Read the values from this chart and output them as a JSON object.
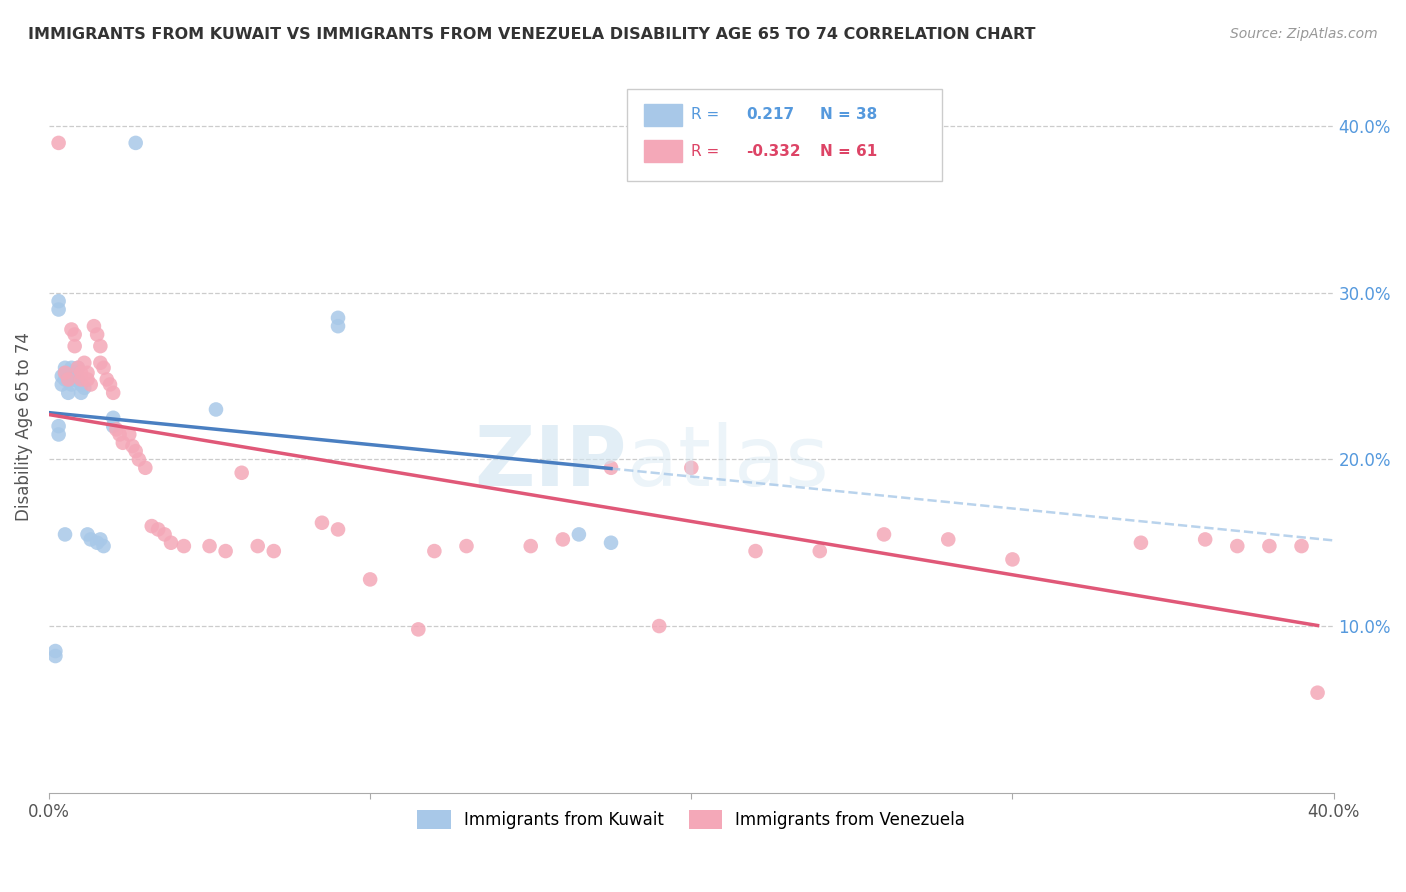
{
  "title": "IMMIGRANTS FROM KUWAIT VS IMMIGRANTS FROM VENEZUELA DISABILITY AGE 65 TO 74 CORRELATION CHART",
  "source": "Source: ZipAtlas.com",
  "ylabel": "Disability Age 65 to 74",
  "xlim": [
    0.0,
    0.4
  ],
  "ylim": [
    0.0,
    0.44
  ],
  "xticks": [
    0.0,
    0.1,
    0.2,
    0.3,
    0.4
  ],
  "yticks": [
    0.1,
    0.2,
    0.3,
    0.4
  ],
  "xticklabels": [
    "0.0%",
    "",
    "",
    "",
    "40.0%"
  ],
  "yticklabels_right": [
    "10.0%",
    "20.0%",
    "30.0%",
    "40.0%"
  ],
  "kuwait_R": 0.217,
  "kuwait_N": 38,
  "venezuela_R": -0.332,
  "venezuela_N": 61,
  "kuwait_color": "#a8c8e8",
  "venezuela_color": "#f4a8b8",
  "kuwait_line_color": "#4a7fc1",
  "venezuela_line_color": "#e05878",
  "dashed_line_color": "#a8c8e8",
  "grid_color": "#cccccc",
  "kuwait_x": [
    0.002,
    0.002,
    0.003,
    0.003,
    0.003,
    0.003,
    0.004,
    0.004,
    0.005,
    0.005,
    0.005,
    0.005,
    0.006,
    0.006,
    0.006,
    0.007,
    0.007,
    0.007,
    0.008,
    0.008,
    0.009,
    0.009,
    0.01,
    0.01,
    0.011,
    0.012,
    0.013,
    0.015,
    0.016,
    0.017,
    0.02,
    0.02,
    0.027,
    0.052,
    0.09,
    0.09,
    0.165,
    0.175
  ],
  "kuwait_y": [
    0.085,
    0.082,
    0.295,
    0.29,
    0.22,
    0.215,
    0.25,
    0.245,
    0.252,
    0.248,
    0.155,
    0.255,
    0.248,
    0.252,
    0.24,
    0.255,
    0.248,
    0.245,
    0.252,
    0.248,
    0.255,
    0.248,
    0.245,
    0.24,
    0.243,
    0.155,
    0.152,
    0.15,
    0.152,
    0.148,
    0.225,
    0.22,
    0.39,
    0.23,
    0.285,
    0.28,
    0.155,
    0.15
  ],
  "venezuela_x": [
    0.003,
    0.005,
    0.006,
    0.007,
    0.008,
    0.008,
    0.009,
    0.01,
    0.01,
    0.011,
    0.012,
    0.012,
    0.013,
    0.014,
    0.015,
    0.016,
    0.016,
    0.017,
    0.018,
    0.019,
    0.02,
    0.021,
    0.022,
    0.023,
    0.025,
    0.026,
    0.027,
    0.028,
    0.03,
    0.032,
    0.034,
    0.036,
    0.038,
    0.042,
    0.05,
    0.055,
    0.06,
    0.065,
    0.07,
    0.085,
    0.09,
    0.1,
    0.115,
    0.12,
    0.13,
    0.15,
    0.16,
    0.175,
    0.19,
    0.2,
    0.22,
    0.24,
    0.26,
    0.28,
    0.3,
    0.34,
    0.36,
    0.37,
    0.38,
    0.39,
    0.395
  ],
  "venezuela_y": [
    0.39,
    0.252,
    0.248,
    0.278,
    0.275,
    0.268,
    0.255,
    0.252,
    0.248,
    0.258,
    0.252,
    0.248,
    0.245,
    0.28,
    0.275,
    0.268,
    0.258,
    0.255,
    0.248,
    0.245,
    0.24,
    0.218,
    0.215,
    0.21,
    0.215,
    0.208,
    0.205,
    0.2,
    0.195,
    0.16,
    0.158,
    0.155,
    0.15,
    0.148,
    0.148,
    0.145,
    0.192,
    0.148,
    0.145,
    0.162,
    0.158,
    0.128,
    0.098,
    0.145,
    0.148,
    0.148,
    0.152,
    0.195,
    0.1,
    0.195,
    0.145,
    0.145,
    0.155,
    0.152,
    0.14,
    0.15,
    0.152,
    0.148,
    0.148,
    0.148,
    0.06
  ]
}
